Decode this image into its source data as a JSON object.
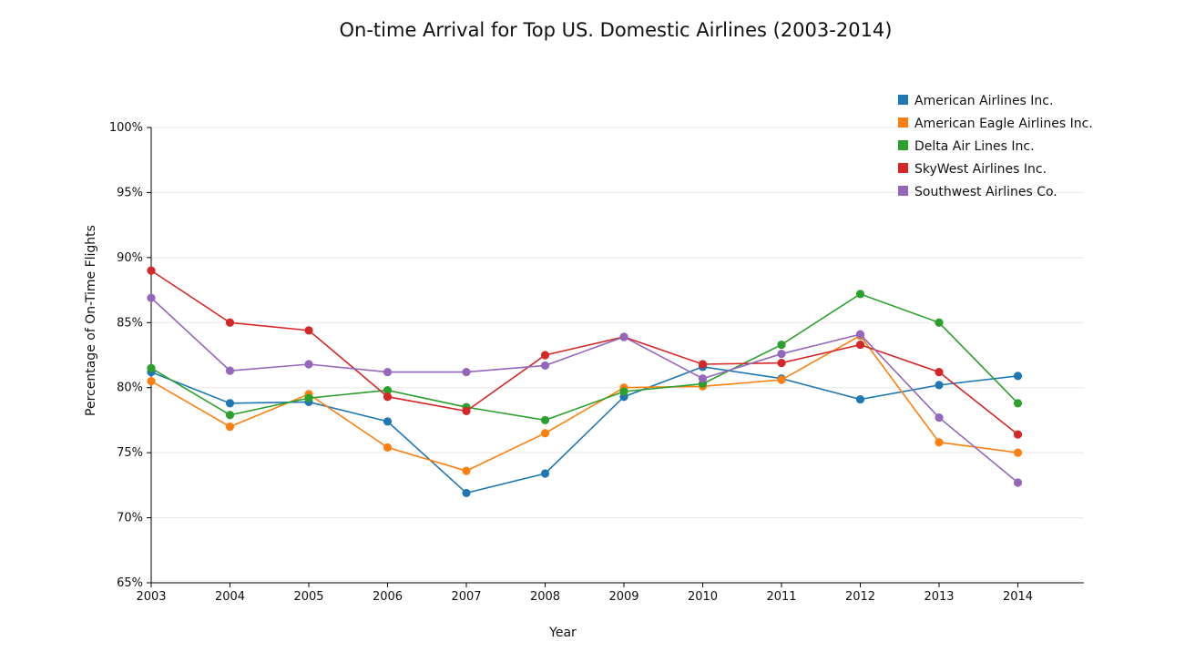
{
  "chart_data": {
    "type": "line",
    "title": "On-time Arrival for Top US. Domestic Airlines (2003-2014)",
    "xlabel": "Year",
    "ylabel": "Percentage of On-Time Flights",
    "x": [
      2003,
      2004,
      2005,
      2006,
      2007,
      2008,
      2009,
      2010,
      2011,
      2012,
      2013,
      2014
    ],
    "x_tick_labels": [
      "2003",
      "2004",
      "2005",
      "2006",
      "2007",
      "2008",
      "2009",
      "2010",
      "2011",
      "2012",
      "2013",
      "2014"
    ],
    "y_ticks": [
      65,
      70,
      75,
      80,
      85,
      90,
      95,
      100
    ],
    "y_tick_labels": [
      "65%",
      "70%",
      "75%",
      "80%",
      "85%",
      "90%",
      "95%",
      "100%"
    ],
    "ylim": [
      65,
      100
    ],
    "grid": true,
    "legend_position": "top-right",
    "series": [
      {
        "name": "American Airlines Inc.",
        "color": "#1f77b4",
        "values": [
          81.2,
          78.8,
          78.9,
          77.4,
          71.9,
          73.4,
          79.3,
          81.6,
          80.7,
          79.1,
          80.2,
          80.9
        ]
      },
      {
        "name": "American Eagle Airlines Inc.",
        "color": "#ff7f0e",
        "values": [
          80.5,
          77.0,
          79.5,
          75.4,
          73.6,
          76.5,
          80.0,
          80.1,
          80.6,
          84.0,
          75.8,
          75.0
        ]
      },
      {
        "name": "Delta Air Lines Inc.",
        "color": "#2ca02c",
        "values": [
          81.5,
          77.9,
          79.2,
          79.8,
          78.5,
          77.5,
          79.7,
          80.3,
          83.3,
          87.2,
          85.0,
          78.8
        ]
      },
      {
        "name": "SkyWest Airlines Inc.",
        "color": "#d62728",
        "values": [
          89.0,
          85.0,
          84.4,
          79.3,
          78.2,
          82.5,
          83.9,
          81.8,
          81.9,
          83.3,
          81.2,
          76.4
        ]
      },
      {
        "name": "Southwest Airlines Co.",
        "color": "#9467bd",
        "values": [
          86.9,
          81.3,
          81.8,
          81.2,
          81.2,
          81.7,
          83.9,
          80.7,
          82.6,
          84.1,
          77.7,
          72.7
        ]
      }
    ]
  }
}
